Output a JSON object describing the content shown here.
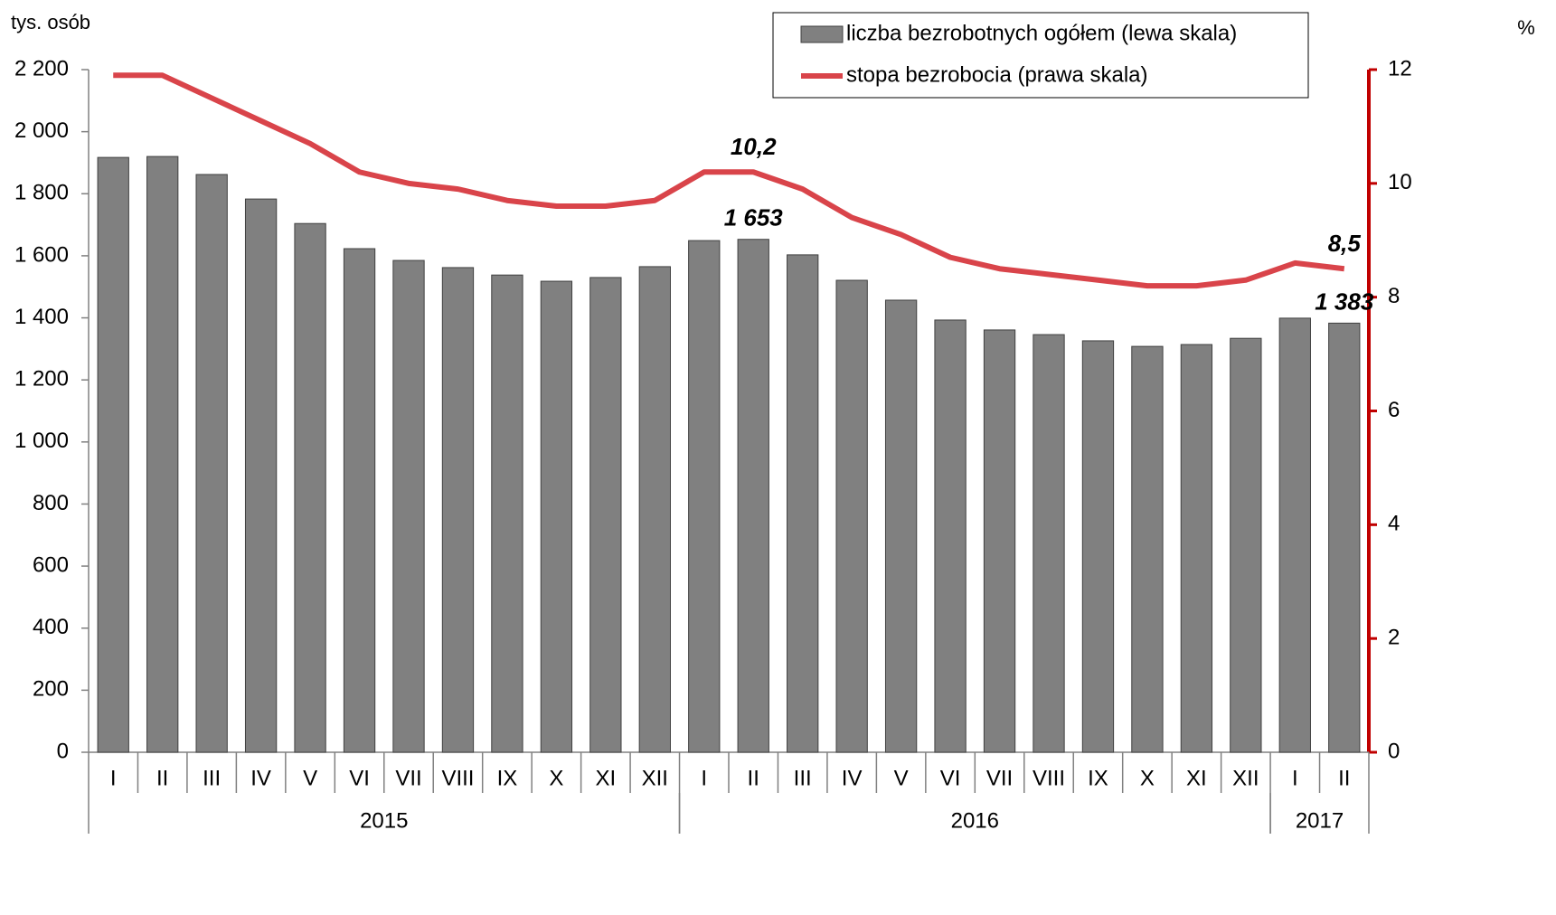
{
  "chart_data": {
    "type": "bar_line",
    "y_label": "tys. osób",
    "y2_label": "%",
    "categories": [
      "I",
      "II",
      "III",
      "IV",
      "V",
      "VI",
      "VII",
      "VIII",
      "IX",
      "X",
      "XI",
      "XII",
      "I",
      "II",
      "III",
      "IV",
      "V",
      "VI",
      "VII",
      "VIII",
      "IX",
      "X",
      "XI",
      "XII",
      "I",
      "II"
    ],
    "year_groups": [
      {
        "name": "2015",
        "count": 12
      },
      {
        "name": "2016",
        "count": 12
      },
      {
        "name": "2017",
        "count": 2
      }
    ],
    "series": [
      {
        "name": "liczba bezrobotnych ogółem (lewa skala)",
        "type": "bar",
        "color": "#808080",
        "values": [
          1917,
          1920,
          1862,
          1783,
          1704,
          1623,
          1585,
          1562,
          1538,
          1518,
          1530,
          1565,
          1649,
          1653,
          1603,
          1521,
          1457,
          1393,
          1361,
          1346,
          1326,
          1308,
          1314,
          1334,
          1399,
          1383
        ],
        "value_labels": [
          null,
          null,
          null,
          null,
          null,
          null,
          null,
          null,
          null,
          null,
          null,
          null,
          null,
          "1 653",
          null,
          null,
          null,
          null,
          null,
          null,
          null,
          null,
          null,
          null,
          null,
          "1 383"
        ],
        "label_color": "#808080"
      },
      {
        "name": "stopa bezrobocia (prawa skala)",
        "type": "line",
        "axis": "y2",
        "color": "#d9444a",
        "values": [
          11.9,
          11.9,
          11.5,
          11.1,
          10.7,
          10.2,
          10.0,
          9.9,
          9.7,
          9.6,
          9.6,
          9.7,
          10.2,
          10.2,
          9.9,
          9.4,
          9.1,
          8.7,
          8.5,
          8.4,
          8.3,
          8.2,
          8.2,
          8.3,
          8.6,
          8.5
        ],
        "value_labels": [
          null,
          null,
          null,
          null,
          null,
          null,
          null,
          null,
          null,
          null,
          null,
          null,
          null,
          "10,2",
          null,
          null,
          null,
          null,
          null,
          null,
          null,
          null,
          null,
          null,
          null,
          "8,5"
        ],
        "label_color": "#c00000"
      }
    ],
    "ylim": [
      0,
      2200
    ],
    "yticks": [
      0,
      200,
      400,
      600,
      800,
      {
        "value": 1000,
        "label": "1 000"
      },
      {
        "value": 1200,
        "label": "1 200"
      },
      {
        "value": 1400,
        "label": "1 400"
      },
      {
        "value": 1600,
        "label": "1 600"
      },
      {
        "value": 1800,
        "label": "1 800"
      },
      {
        "value": 2000,
        "label": "2 000"
      },
      {
        "value": 2200,
        "label": "2 200"
      }
    ],
    "y2lim": [
      0,
      12
    ],
    "y2ticks": [
      0,
      2,
      4,
      6,
      8,
      10,
      12
    ],
    "y2_color": "#c00000",
    "grid": false,
    "legend": "top-right"
  }
}
